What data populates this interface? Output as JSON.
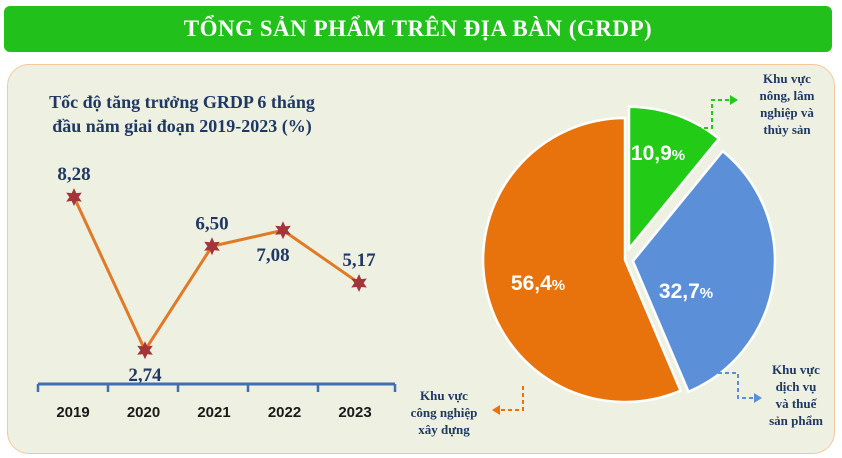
{
  "banner": {
    "title": "TỔNG SẢN PHẨM TRÊN ĐỊA BÀN (GRDP)"
  },
  "colors": {
    "banner": "#22c01a",
    "line": "#e07a27",
    "marker": "#a3343a",
    "axis": "#3f6fb0",
    "value_text": "#1f3864",
    "pie_orange": "#e8720c",
    "pie_blue": "#5b8fd8",
    "pie_green": "#22cc16"
  },
  "chart_data": [
    {
      "type": "line",
      "title": "Tốc độ tăng trưởng GRDP 6 tháng đầu năm giai đoạn 2019-2023 (%)",
      "title_lines": [
        "Tốc độ tăng trưởng GRDP 6 tháng",
        "đầu năm giai đoạn 2019-2023 (%)"
      ],
      "categories": [
        "2019",
        "2020",
        "2021",
        "2022",
        "2023"
      ],
      "values": [
        8.28,
        2.74,
        6.5,
        7.08,
        5.17
      ],
      "labels": [
        "8,28",
        "2,74",
        "6,50",
        "7,08",
        "5,17"
      ],
      "label_positions": [
        "above",
        "below",
        "above",
        "below",
        "above"
      ],
      "ylim": [
        0,
        10
      ]
    },
    {
      "type": "pie",
      "slices": [
        {
          "name": "Khu vực nông, lâm nghiệp và thủy sản",
          "name_lines": [
            "Khu vực",
            "nông, lâm",
            "nghiệp và",
            "thủy sản"
          ],
          "value": 10.9,
          "label": "10,9",
          "unit": "%",
          "color": "#22cc16"
        },
        {
          "name": "Khu vực dịch vụ và thuế sản phẩm",
          "name_lines": [
            "Khu vực",
            "dịch vụ",
            "và thuế",
            "sản phẩm"
          ],
          "value": 32.7,
          "label": "32,7",
          "unit": "%",
          "color": "#5b8fd8"
        },
        {
          "name": "Khu vực công nghiệp xây dựng",
          "name_lines": [
            "Khu vực",
            "công nghiệp",
            "xây dựng"
          ],
          "value": 56.4,
          "label": "56,4",
          "unit": "%",
          "color": "#e8720c"
        }
      ]
    }
  ]
}
